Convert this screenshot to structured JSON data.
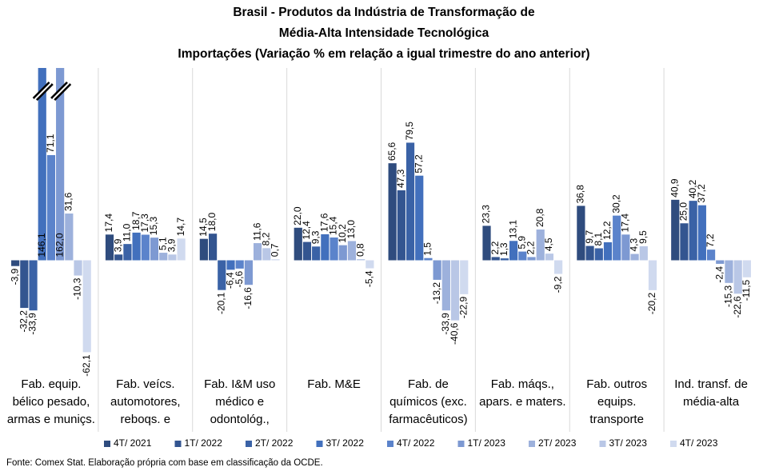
{
  "chart_data": {
    "type": "bar",
    "title": [
      "Brasil - Produtos da Indústria de Transformação de",
      "Média-Alta Intensidade Tecnológica",
      "Importações (Variação % em relação a igual trimestre do ano anterior)"
    ],
    "source": "Fonte: Comex Stat. Elaboração própria com base em classificação da OCDE.",
    "categories": [
      "Fab. equip. bélico pesado, armas e muniçs.",
      "Fab. veícs. automotores, reboqs. e",
      "Fab. I&M uso médico e odontológ.,",
      "Fab. M&E",
      "Fab. de químicos (exc. farmacêuticos)",
      "Fab. máqs., apars. e maters.",
      "Fab. outros equips. transporte",
      "Ind. transf. de média-alta"
    ],
    "ylim": [
      -70,
      130
    ],
    "legend": "bottom",
    "series": [
      {
        "name": "4T/ 2021",
        "color": "#2f4c7e",
        "values": [
          -3.9,
          17.4,
          14.5,
          22.0,
          65.6,
          23.3,
          36.8,
          40.9
        ],
        "value_labels": [
          "-3,9",
          "17,4",
          "14,5",
          "22,0",
          "65,6",
          "23,3",
          "36,8",
          "40,9"
        ]
      },
      {
        "name": "1T/ 2022",
        "color": "#335590",
        "values": [
          -32.2,
          3.9,
          18.0,
          12.4,
          47.3,
          2.2,
          9.7,
          25.0
        ],
        "value_labels": [
          "-32,2",
          "3,9",
          "18,0",
          "12,4",
          "47,3",
          "2,2",
          "9,7",
          "25,0"
        ]
      },
      {
        "name": "2T/ 2022",
        "color": "#3a62a6",
        "values": [
          -33.9,
          11.0,
          -20.1,
          9.3,
          79.5,
          1.3,
          8.1,
          40.2
        ],
        "value_labels": [
          "-33,9",
          "11,0",
          "-20,1",
          "9,3",
          "79,5",
          "1,3",
          "8,1",
          "40,2"
        ]
      },
      {
        "name": "3T/ 2022",
        "color": "#4270bd",
        "values": [
          146.1,
          18.7,
          -6.4,
          17.6,
          57.2,
          13.1,
          12.2,
          37.2
        ],
        "value_labels": [
          "146,1",
          "18,7",
          "-6,4",
          "17,6",
          "57,2",
          "13,1",
          "12,2",
          "37,2"
        ]
      },
      {
        "name": "4T/ 2022",
        "color": "#5b83cb",
        "values": [
          71.1,
          17.3,
          -5.6,
          15.4,
          1.5,
          5.9,
          30.2,
          7.2
        ],
        "value_labels": [
          "71,1",
          "17,3",
          "-5,6",
          "15,4",
          "1,5",
          "5,9",
          "30,2",
          "7,2"
        ]
      },
      {
        "name": "1T/ 2023",
        "color": "#7d99d2",
        "values": [
          162.0,
          15.3,
          -16.6,
          10.2,
          -13.2,
          2.2,
          17.4,
          -2.4
        ],
        "value_labels": [
          "162,0",
          "15,3",
          "-16,6",
          "10,2",
          "-13,2",
          "2,2",
          "17,4",
          "-2,4"
        ]
      },
      {
        "name": "2T/ 2023",
        "color": "#9db1dc",
        "values": [
          31.6,
          5.1,
          11.6,
          13.0,
          -33.9,
          20.8,
          4.3,
          -15.3
        ],
        "value_labels": [
          "31,6",
          "5,1",
          "11,6",
          "13,0",
          "-33,9",
          "20,8",
          "4,3",
          "-15,3"
        ]
      },
      {
        "name": "3T/ 2023",
        "color": "#b9c7e6",
        "values": [
          -10.3,
          3.9,
          8.2,
          0.8,
          -40.6,
          4.5,
          9.5,
          -22.6
        ],
        "value_labels": [
          "-10,3",
          "3,9",
          "8,2",
          "0,8",
          "-40,6",
          "4,5",
          "9,5",
          "-22,6"
        ]
      },
      {
        "name": "4T/ 2023",
        "color": "#d0daef",
        "values": [
          -62.1,
          14.7,
          0.7,
          -5.4,
          -22.9,
          -9.2,
          -20.2,
          -11.5
        ],
        "value_labels": [
          "-62,1",
          "14,7",
          "0,7",
          "-5,4",
          "-22,9",
          "-9,2",
          "-20,2",
          "-11,5"
        ]
      }
    ]
  }
}
